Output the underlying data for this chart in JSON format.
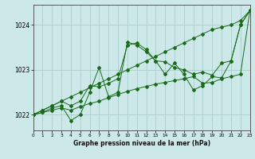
{
  "title": "Graphe pression niveau de la mer (hPa)",
  "bg_color": "#cce8e8",
  "grid_color": "#aacccc",
  "line_color": "#1a6b1a",
  "xlim": [
    0,
    23
  ],
  "ylim": [
    1021.65,
    1024.45
  ],
  "yticks": [
    1022,
    1023,
    1024
  ],
  "xticks": [
    0,
    1,
    2,
    3,
    4,
    5,
    6,
    7,
    8,
    9,
    10,
    11,
    12,
    13,
    14,
    15,
    16,
    17,
    18,
    19,
    20,
    21,
    22,
    23
  ],
  "series": [
    [
      1022.0,
      1022.05,
      1022.15,
      1022.2,
      1021.87,
      1022.0,
      1022.5,
      1023.05,
      1022.4,
      1022.5,
      1023.62,
      1023.55,
      1023.4,
      1023.2,
      1022.9,
      1023.15,
      1022.9,
      1022.55,
      1022.65,
      1022.85,
      1022.82,
      1023.2,
      1024.0,
      1024.32
    ],
    [
      1022.0,
      1022.1,
      1022.2,
      1022.3,
      1022.4,
      1022.5,
      1022.6,
      1022.7,
      1022.8,
      1022.9,
      1023.0,
      1023.1,
      1023.2,
      1023.3,
      1023.4,
      1023.5,
      1023.6,
      1023.7,
      1023.8,
      1023.9,
      1023.95,
      1024.0,
      1024.1,
      1024.32
    ],
    [
      1022.0,
      1022.05,
      1022.1,
      1022.15,
      1022.1,
      1022.18,
      1022.25,
      1022.3,
      1022.38,
      1022.45,
      1022.52,
      1022.58,
      1022.63,
      1022.68,
      1022.72,
      1022.76,
      1022.8,
      1022.85,
      1022.7,
      1022.72,
      1022.8,
      1022.85,
      1022.9,
      1024.32
    ],
    [
      1022.0,
      1022.1,
      1022.2,
      1022.3,
      1022.2,
      1022.3,
      1022.65,
      1022.62,
      1022.7,
      1022.8,
      1023.55,
      1023.6,
      1023.45,
      1023.2,
      1023.18,
      1023.05,
      1023.0,
      1022.9,
      1022.95,
      1022.88,
      1023.15,
      1023.2,
      1024.0,
      1024.32
    ]
  ]
}
